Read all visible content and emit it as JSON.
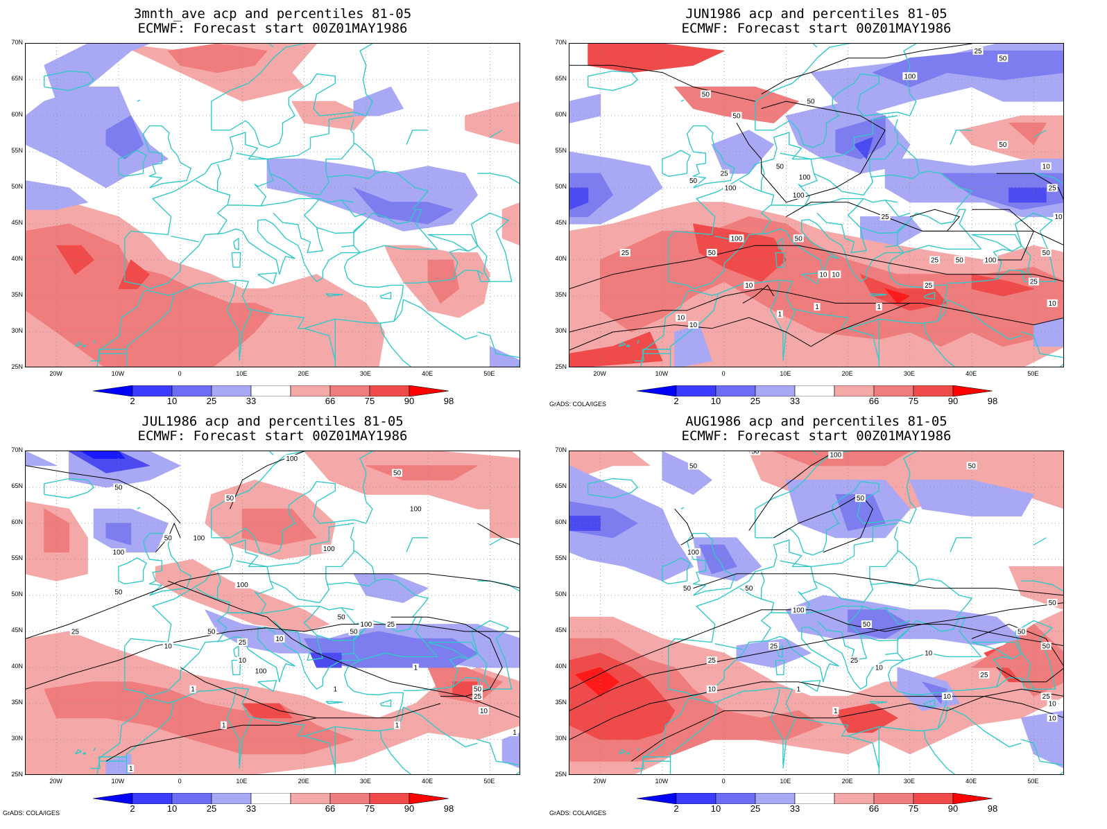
{
  "colors": {
    "blue_2": "#1a1aff",
    "blue_10": "#4b4bf0",
    "blue_25": "#7d7df0",
    "blue_33": "#a8a8f5",
    "red_66": "#f5a8a8",
    "red_75": "#f07d7d",
    "red_90": "#f04b4b",
    "red_98": "#ff1a1a",
    "coast": "#33c8c8",
    "contour": "#000000"
  },
  "colorbar": {
    "labels": [
      "2",
      "10",
      "25",
      "33",
      "66",
      "75",
      "90",
      "98"
    ],
    "colors": [
      "#0000ff",
      "#3c3cff",
      "#6e6ef5",
      "#a8a8f5",
      "#ffffff",
      "#f5a8a8",
      "#f07d7d",
      "#f04b4b",
      "#ff0000"
    ]
  },
  "axes": {
    "lat_labels": [
      "70N",
      "65N",
      "60N",
      "55N",
      "50N",
      "45N",
      "40N",
      "35N",
      "30N",
      "25N"
    ],
    "lon_labels": [
      "20W",
      "10W",
      "0",
      "10E",
      "20E",
      "30E",
      "40E",
      "50E"
    ]
  },
  "credit": "GrADS: COLA/IGES",
  "panels": [
    {
      "id": "panel-3mnth",
      "title_line1": "3mnth_ave acp and percentiles 81-05",
      "title_line2": "ECMWF: Forecast start 00Z01MAY1986",
      "show_credit": false,
      "contour_labels": []
    },
    {
      "id": "panel-jun",
      "title_line1": "JUN1986 acp and percentiles 81-05",
      "title_line2": "ECMWF: Forecast start 00Z01MAY1986",
      "show_credit": true,
      "contour_labels": [
        "25",
        "50",
        "100",
        "50",
        "50",
        "50",
        "50",
        "100",
        "50",
        "100",
        "25",
        "100",
        "25",
        "50",
        "10",
        "25",
        "50",
        "100",
        "50",
        "10",
        "25",
        "10",
        "10",
        "1",
        "10",
        "1",
        "1",
        "10",
        "25",
        "50",
        "25",
        "10",
        "100",
        "50",
        "25",
        "10"
      ]
    },
    {
      "id": "panel-jul",
      "title_line1": "JUL1986 acp and percentiles 81-05",
      "title_line2": "ECMWF: Forecast start 00Z01MAY1986",
      "show_credit": true,
      "contour_labels": [
        "100",
        "50",
        "50",
        "50",
        "100",
        "50",
        "100",
        "100",
        "100",
        "100",
        "50",
        "50",
        "100",
        "25",
        "25",
        "50",
        "50",
        "10",
        "25",
        "10",
        "10",
        "1",
        "100",
        "1",
        "1",
        "50",
        "25",
        "10",
        "1",
        "1",
        "1",
        "1"
      ]
    },
    {
      "id": "panel-aug",
      "title_line1": "AUG1986 acp and percentiles 81-05",
      "title_line2": "ECMWF: Forecast start 00Z01MAY1986",
      "show_credit": true,
      "contour_labels": [
        "50",
        "100",
        "50",
        "50",
        "100",
        "50",
        "50",
        "50",
        "100",
        "50",
        "50",
        "25",
        "25",
        "50",
        "25",
        "10",
        "10",
        "10",
        "1",
        "1",
        "10",
        "50",
        "25",
        "10",
        "25",
        "10"
      ]
    }
  ]
}
